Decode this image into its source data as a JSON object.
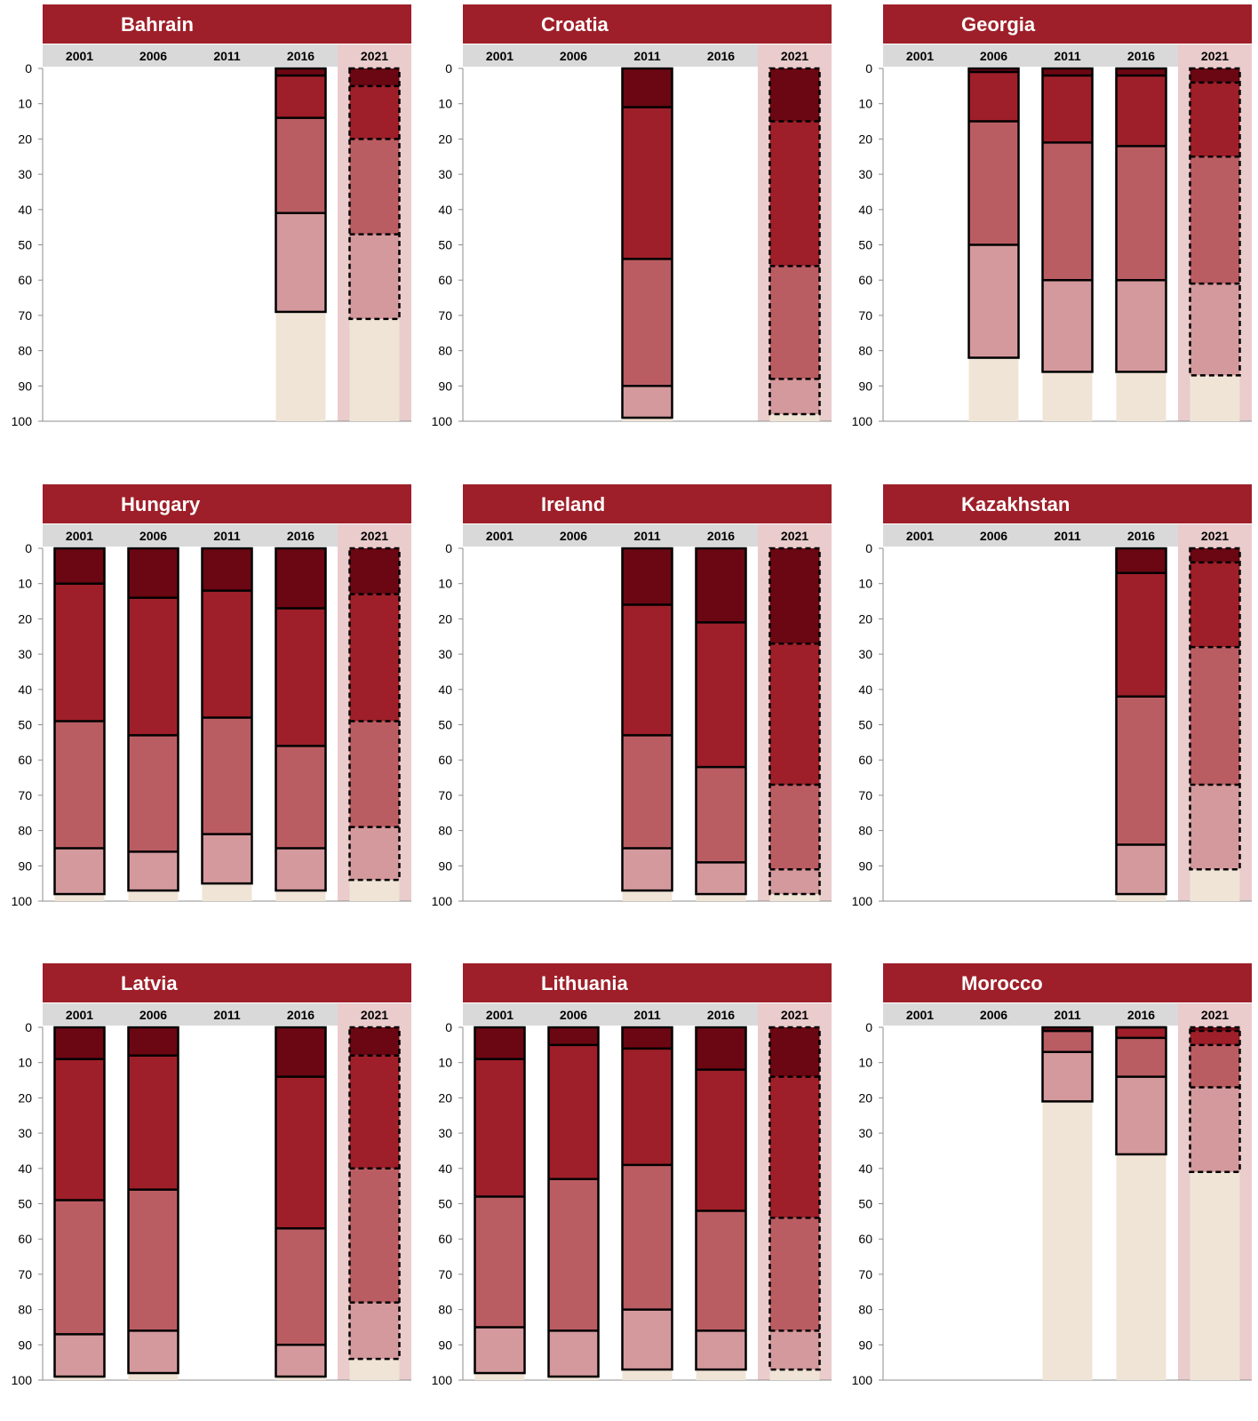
{
  "colors": {
    "title_bar": "#9e1f29",
    "header_bar": "#d9d9d9",
    "header_2021": "#eacccd",
    "band_2021": "#eacccd",
    "remainder": "#f0e4d6",
    "segment_1": "#6b0712",
    "segment_2": "#9e1f29",
    "segment_3": "#ba5d63",
    "segment_4": "#d4999c",
    "outline": "#000000",
    "axis": "#8c8c8c"
  },
  "chart_data": [
    {
      "type": "bar",
      "stacked": true,
      "title": "Bahrain",
      "categories": [
        "2001",
        "2006",
        "2011",
        "2016",
        "2021"
      ],
      "highlight_category": "2021",
      "yticks": [
        0,
        10,
        20,
        30,
        40,
        50,
        60,
        70,
        80,
        90,
        100
      ],
      "ylim": [
        0,
        100
      ],
      "y_inverted": true,
      "series_cumulative": [
        null,
        null,
        null,
        [
          2,
          14,
          41,
          69
        ],
        [
          5,
          20,
          47,
          71
        ]
      ]
    },
    {
      "type": "bar",
      "stacked": true,
      "title": "Croatia",
      "categories": [
        "2001",
        "2006",
        "2011",
        "2016",
        "2021"
      ],
      "highlight_category": "2021",
      "yticks": [
        0,
        10,
        20,
        30,
        40,
        50,
        60,
        70,
        80,
        90,
        100
      ],
      "ylim": [
        0,
        100
      ],
      "y_inverted": true,
      "series_cumulative": [
        null,
        null,
        [
          11,
          54,
          90,
          99
        ],
        null,
        [
          15,
          56,
          88,
          98
        ]
      ]
    },
    {
      "type": "bar",
      "stacked": true,
      "title": "Georgia",
      "categories": [
        "2001",
        "2006",
        "2011",
        "2016",
        "2021"
      ],
      "highlight_category": "2021",
      "yticks": [
        0,
        10,
        20,
        30,
        40,
        50,
        60,
        70,
        80,
        90,
        100
      ],
      "ylim": [
        0,
        100
      ],
      "y_inverted": true,
      "series_cumulative": [
        null,
        [
          1,
          15,
          50,
          82
        ],
        [
          2,
          21,
          60,
          86
        ],
        [
          2,
          22,
          60,
          86
        ],
        [
          4,
          25,
          61,
          87
        ]
      ]
    },
    {
      "type": "bar",
      "stacked": true,
      "title": "Hungary",
      "categories": [
        "2001",
        "2006",
        "2011",
        "2016",
        "2021"
      ],
      "highlight_category": "2021",
      "yticks": [
        0,
        10,
        20,
        30,
        40,
        50,
        60,
        70,
        80,
        90,
        100
      ],
      "ylim": [
        0,
        100
      ],
      "y_inverted": true,
      "series_cumulative": [
        [
          10,
          49,
          85,
          98
        ],
        [
          14,
          53,
          86,
          97
        ],
        [
          12,
          48,
          81,
          95
        ],
        [
          17,
          56,
          85,
          97
        ],
        [
          13,
          49,
          79,
          94
        ]
      ]
    },
    {
      "type": "bar",
      "stacked": true,
      "title": "Ireland",
      "categories": [
        "2001",
        "2006",
        "2011",
        "2016",
        "2021"
      ],
      "highlight_category": "2021",
      "yticks": [
        0,
        10,
        20,
        30,
        40,
        50,
        60,
        70,
        80,
        90,
        100
      ],
      "ylim": [
        0,
        100
      ],
      "y_inverted": true,
      "series_cumulative": [
        null,
        null,
        [
          16,
          53,
          85,
          97
        ],
        [
          21,
          62,
          89,
          98
        ],
        [
          27,
          67,
          91,
          98
        ]
      ]
    },
    {
      "type": "bar",
      "stacked": true,
      "title": "Kazakhstan",
      "categories": [
        "2001",
        "2006",
        "2011",
        "2016",
        "2021"
      ],
      "highlight_category": "2021",
      "yticks": [
        0,
        10,
        20,
        30,
        40,
        50,
        60,
        70,
        80,
        90,
        100
      ],
      "ylim": [
        0,
        100
      ],
      "y_inverted": true,
      "series_cumulative": [
        null,
        null,
        null,
        [
          7,
          42,
          84,
          98
        ],
        [
          4,
          28,
          67,
          91
        ]
      ]
    },
    {
      "type": "bar",
      "stacked": true,
      "title": "Latvia",
      "categories": [
        "2001",
        "2006",
        "2011",
        "2016",
        "2021"
      ],
      "highlight_category": "2021",
      "yticks": [
        0,
        10,
        20,
        30,
        40,
        50,
        60,
        70,
        80,
        90,
        100
      ],
      "ylim": [
        0,
        100
      ],
      "y_inverted": true,
      "series_cumulative": [
        [
          9,
          49,
          87,
          99
        ],
        [
          8,
          46,
          86,
          98
        ],
        null,
        [
          14,
          57,
          90,
          99
        ],
        [
          8,
          40,
          78,
          94
        ]
      ]
    },
    {
      "type": "bar",
      "stacked": true,
      "title": "Lithuania",
      "categories": [
        "2001",
        "2006",
        "2011",
        "2016",
        "2021"
      ],
      "highlight_category": "2021",
      "yticks": [
        0,
        10,
        20,
        30,
        40,
        50,
        60,
        70,
        80,
        90,
        100
      ],
      "ylim": [
        0,
        100
      ],
      "y_inverted": true,
      "series_cumulative": [
        [
          9,
          48,
          85,
          98
        ],
        [
          5,
          43,
          86,
          99
        ],
        [
          6,
          39,
          80,
          97
        ],
        [
          12,
          52,
          86,
          97
        ],
        [
          14,
          54,
          86,
          97
        ]
      ]
    },
    {
      "type": "bar",
      "stacked": true,
      "title": "Morocco",
      "categories": [
        "2001",
        "2006",
        "2011",
        "2016",
        "2021"
      ],
      "highlight_category": "2021",
      "yticks": [
        0,
        10,
        20,
        30,
        40,
        50,
        60,
        70,
        80,
        90,
        100
      ],
      "ylim": [
        0,
        100
      ],
      "y_inverted": true,
      "series_cumulative": [
        null,
        null,
        [
          1,
          1,
          7,
          21
        ],
        [
          0,
          3,
          14,
          36
        ],
        [
          1,
          5,
          17,
          41
        ]
      ]
    }
  ]
}
